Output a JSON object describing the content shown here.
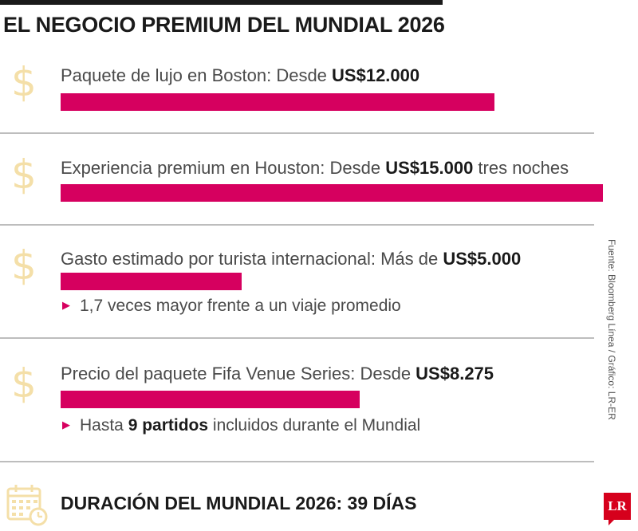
{
  "title": "EL NEGOCIO PREMIUM DEL MUNDIAL 2026",
  "rows": [
    {
      "label": "Paquete de lujo en Boston: Desde ",
      "value": "US$12.000",
      "suffix": ""
    },
    {
      "label": "Experiencia premium en Houston: Desde ",
      "value": "US$15.000",
      "suffix": " tres noches"
    },
    {
      "label": "Gasto estimado por turista internacional: Más de ",
      "value": "US$5.000",
      "suffix": ""
    },
    {
      "label": "Precio del paquete Fifa Venue Series: Desde ",
      "value": "US$8.275",
      "suffix": ""
    }
  ],
  "notes": {
    "turista": {
      "text": "1,7 veces mayor frente a un viaje promedio"
    },
    "fifa": {
      "pre": "Hasta ",
      "bold": "9 partidos",
      "post": " incluidos durante el Mundial"
    }
  },
  "footer": "DURACIÓN DEL MUNDIAL 2026: 39 DÍAS",
  "source": "Fuente: Bloomberg Línea / Gráfico: LR-ER",
  "logo": "LR",
  "icons": {
    "row_icon": "dollar-icon",
    "footer_icon": "calendar-icon"
  },
  "colors": {
    "bar": "#d6005f",
    "dollar": "#f4dfa8",
    "logo": "#d6001c"
  },
  "chart_data": {
    "type": "bar",
    "orientation": "horizontal",
    "categories": [
      "Paquete de lujo en Boston",
      "Experiencia premium en Houston",
      "Gasto estimado por turista internacional",
      "Precio del paquete Fifa Venue Series"
    ],
    "values": [
      12000,
      15000,
      5000,
      8275
    ],
    "unit": "US$"
  }
}
